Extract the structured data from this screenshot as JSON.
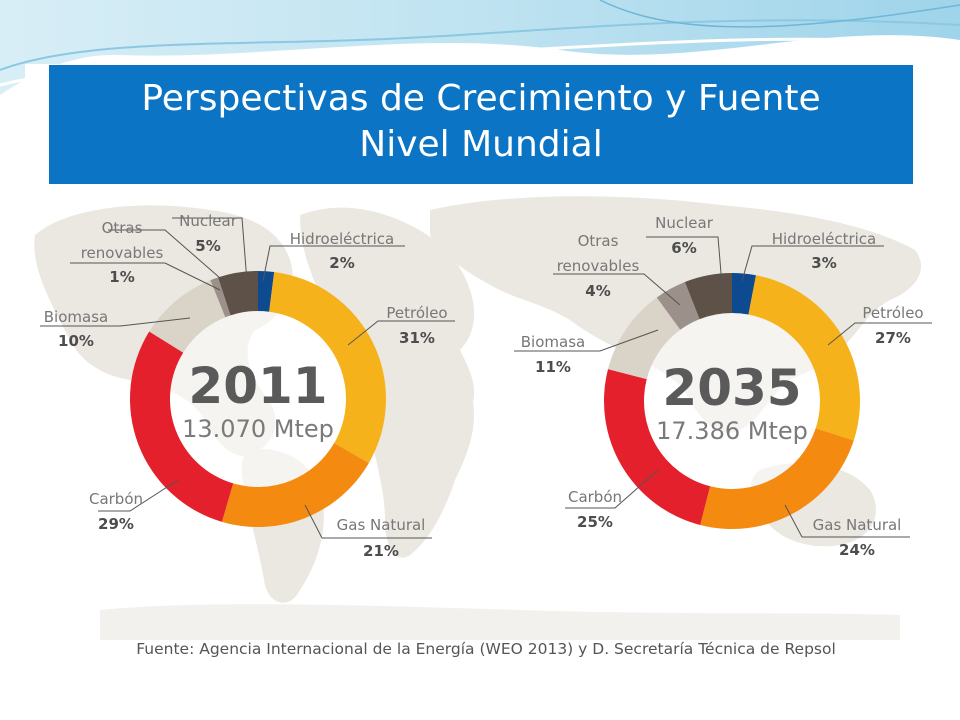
{
  "slide": {
    "title_line1": "Perspectivas de Crecimiento y Fuente",
    "title_line2": "Nivel Mundial"
  },
  "colors": {
    "title_bar": "#0b74c4",
    "Hidroeléctrica": "#0d4a8f",
    "Petróleo": "#f6b21b",
    "Gas Natural": "#f48a10",
    "Carbón": "#e3202b",
    "Biomasa": "#d9d3c8",
    "Otras renovables": "#9b918a",
    "Nuclear": "#5e5248"
  },
  "chart_data": [
    {
      "type": "pie",
      "variant": "donut",
      "center_label": "2011",
      "center_sublabel": "13.070 Mtep",
      "slices": [
        {
          "label": "Hidroeléctrica",
          "value": 2,
          "value_label": "2%"
        },
        {
          "label": "Petróleo",
          "value": 31,
          "value_label": "31%"
        },
        {
          "label": "Gas Natural",
          "value": 21,
          "value_label": "21%"
        },
        {
          "label": "Carbón",
          "value": 29,
          "value_label": "29%"
        },
        {
          "label": "Biomasa",
          "value": 10,
          "value_label": "10%"
        },
        {
          "label": "Otras renovables",
          "label_lines": [
            "Otras",
            "renovables"
          ],
          "value": 1,
          "value_label": "1%"
        },
        {
          "label": "Nuclear",
          "value": 5,
          "value_label": "5%"
        }
      ]
    },
    {
      "type": "pie",
      "variant": "donut",
      "center_label": "2035",
      "center_sublabel": "17.386 Mtep",
      "slices": [
        {
          "label": "Hidroeléctrica",
          "value": 3,
          "value_label": "3%"
        },
        {
          "label": "Petróleo",
          "value": 27,
          "value_label": "27%"
        },
        {
          "label": "Gas Natural",
          "value": 24,
          "value_label": "24%"
        },
        {
          "label": "Carbón",
          "value": 25,
          "value_label": "25%"
        },
        {
          "label": "Biomasa",
          "value": 11,
          "value_label": "11%"
        },
        {
          "label": "Otras renovables",
          "label_lines": [
            "Otras",
            "renovables"
          ],
          "value": 4,
          "value_label": "4%"
        },
        {
          "label": "Nuclear",
          "value": 6,
          "value_label": "6%"
        }
      ]
    }
  ],
  "source_note": "Fuente: Agencia Internacional de la Energía (WEO 2013) y D. Secretaría Técnica de Repsol"
}
